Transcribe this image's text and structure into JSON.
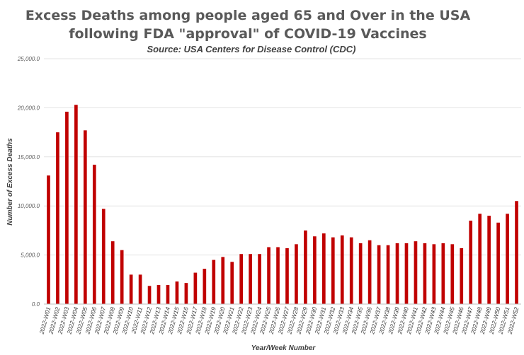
{
  "chart_data": {
    "type": "bar",
    "title_line1": "Excess Deaths among people aged 65 and Over in the USA",
    "title_line2": "following FDA \"approval\" of COVID-19 Vaccines",
    "subtitle": "Source: USA Centers for Disease Control (CDC)",
    "xlabel": "Year/Week Number",
    "ylabel": "Number of Excess Deaths",
    "ylim": [
      0,
      25000
    ],
    "yticks": [
      "0.0",
      "5,000.0",
      "10,000.0",
      "15,000.0",
      "20,000.0",
      "25,000.0"
    ],
    "ytick_values": [
      0,
      5000,
      10000,
      15000,
      20000,
      25000
    ],
    "grid": true,
    "bar_color": "#c00000",
    "categories": [
      "2022-W01",
      "2022-W02",
      "2022-W03",
      "2022-W04",
      "2022-W05",
      "2022-W06",
      "2022-W07",
      "2022-W08",
      "2022-W09",
      "2022-W10",
      "2022-W11",
      "2022-W12",
      "2022-W13",
      "2022-W14",
      "2022-W15",
      "2022-W16",
      "2022-W17",
      "2022-W18",
      "2022-W19",
      "2022-W20",
      "2022-W21",
      "2022-W22",
      "2022-W23",
      "2022-W24",
      "2022-W25",
      "2022-W26",
      "2022-W27",
      "2022-W28",
      "2022-W29",
      "2022-W30",
      "2022-W31",
      "2022-W32",
      "2022-W33",
      "2022-W34",
      "2022-W35",
      "2022-W36",
      "2022-W37",
      "2022-W38",
      "2022-W39",
      "2022-W40",
      "2022-W41",
      "2022-W42",
      "2022-W43",
      "2022-W44",
      "2022-W45",
      "2022-W46",
      "2022-W47",
      "2022-W48",
      "2022-W49",
      "2022-W50",
      "2022-W51",
      "2022-W52"
    ],
    "values": [
      13100,
      17500,
      19600,
      20300,
      17700,
      14200,
      9700,
      6400,
      5500,
      3000,
      3000,
      1850,
      1950,
      1950,
      2300,
      2150,
      3200,
      3600,
      4500,
      4800,
      4300,
      5100,
      5100,
      5100,
      5800,
      5800,
      5700,
      6100,
      7500,
      6900,
      7200,
      6800,
      7000,
      6800,
      6200,
      6500,
      6000,
      6000,
      6200,
      6200,
      6400,
      6200,
      6100,
      6200,
      6100,
      5700,
      8500,
      9200,
      9000,
      8300,
      9200,
      10500
    ]
  }
}
